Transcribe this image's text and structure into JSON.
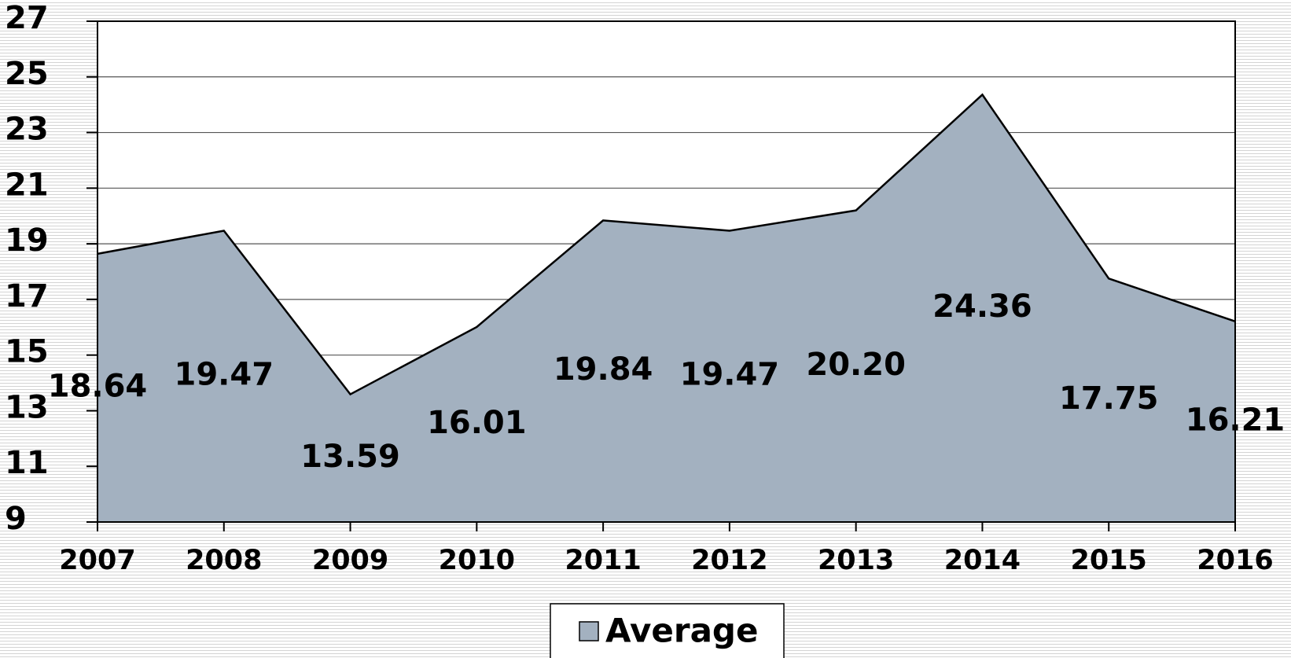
{
  "chart_data": {
    "type": "area",
    "categories": [
      "2007",
      "2008",
      "2009",
      "2010",
      "2011",
      "2012",
      "2013",
      "2014",
      "2015",
      "2016"
    ],
    "series": [
      {
        "name": "Average",
        "color": "#a3b1c0",
        "values": [
          18.64,
          19.47,
          13.59,
          16.01,
          19.84,
          19.47,
          20.2,
          24.36,
          17.75,
          16.21
        ],
        "value_labels": [
          "18.64",
          "19.47",
          "13.59",
          "16.01",
          "19.84",
          "19.47",
          "20.20",
          "24.36",
          "17.75",
          "16.21"
        ]
      }
    ],
    "ylim": [
      9,
      27
    ],
    "yticks": [
      9,
      11,
      13,
      15,
      17,
      19,
      21,
      23,
      25,
      27
    ],
    "grid": true,
    "legend": "bottom"
  }
}
